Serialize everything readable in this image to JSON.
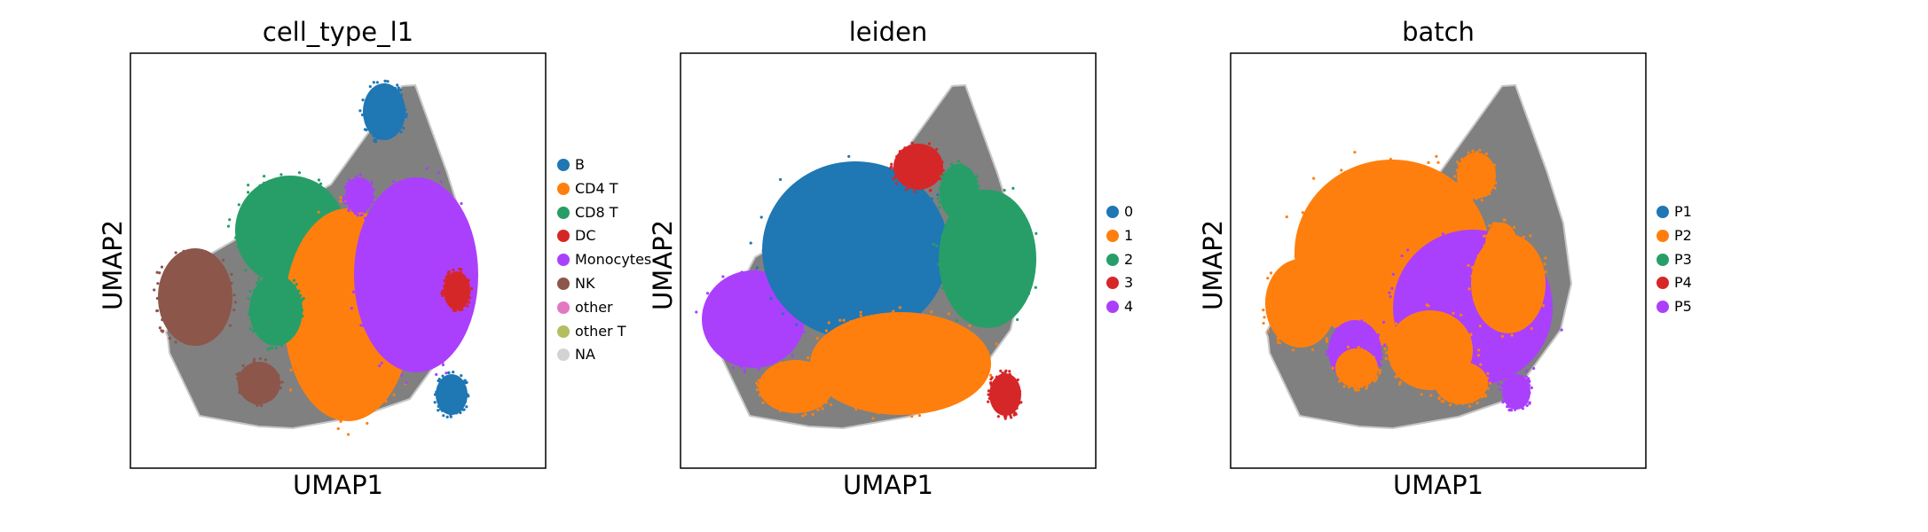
{
  "chart_data": [
    {
      "type": "scatter",
      "title": "cell_type_l1",
      "xlabel": "UMAP1",
      "ylabel": "UMAP2",
      "grid": false,
      "ticks": false,
      "background_color": "#808080",
      "legend_position": "right",
      "series": [
        {
          "name": "B",
          "color": "#1f77b4"
        },
        {
          "name": "CD4 T",
          "color": "#ff7f0e"
        },
        {
          "name": "CD8 T",
          "color": "#279e68"
        },
        {
          "name": "DC",
          "color": "#d62728"
        },
        {
          "name": "Monocytes",
          "color": "#aa40fc"
        },
        {
          "name": "NK",
          "color": "#8c564b"
        },
        {
          "name": "other",
          "color": "#e377c2"
        },
        {
          "name": "other T",
          "color": "#b5bd61"
        },
        {
          "name": "NA",
          "color": "#d3d3d3"
        }
      ]
    },
    {
      "type": "scatter",
      "title": "leiden",
      "xlabel": "UMAP1",
      "ylabel": "UMAP2",
      "grid": false,
      "ticks": false,
      "background_color": "#808080",
      "legend_position": "right",
      "series": [
        {
          "name": "0",
          "color": "#1f77b4"
        },
        {
          "name": "1",
          "color": "#ff7f0e"
        },
        {
          "name": "2",
          "color": "#279e68"
        },
        {
          "name": "3",
          "color": "#d62728"
        },
        {
          "name": "4",
          "color": "#aa40fc"
        }
      ]
    },
    {
      "type": "scatter",
      "title": "batch",
      "xlabel": "UMAP1",
      "ylabel": "UMAP2",
      "grid": false,
      "ticks": false,
      "background_color": "#808080",
      "legend_position": "right",
      "series": [
        {
          "name": "P1",
          "color": "#1f77b4"
        },
        {
          "name": "P2",
          "color": "#ff7f0e"
        },
        {
          "name": "P3",
          "color": "#279e68"
        },
        {
          "name": "P4",
          "color": "#d62728"
        },
        {
          "name": "P5",
          "color": "#aa40fc"
        }
      ]
    }
  ]
}
